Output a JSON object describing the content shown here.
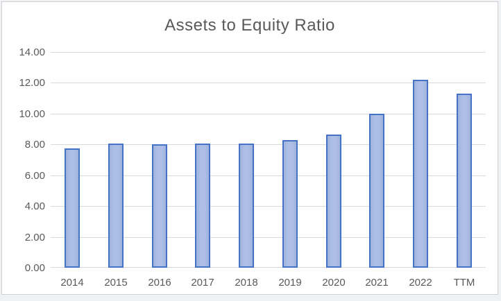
{
  "chart_data": {
    "type": "bar",
    "title": "Assets to Equity Ratio",
    "categories": [
      "2014",
      "2015",
      "2016",
      "2017",
      "2018",
      "2019",
      "2020",
      "2021",
      "2022",
      "TTM"
    ],
    "values": [
      7.75,
      8.05,
      8.0,
      8.05,
      8.05,
      8.3,
      8.65,
      10.0,
      12.2,
      11.3
    ],
    "xlabel": "",
    "ylabel": "",
    "ylim": [
      0,
      14
    ],
    "ytick_step": 2,
    "ytick_labels": [
      "0.00",
      "2.00",
      "4.00",
      "6.00",
      "8.00",
      "10.00",
      "12.00",
      "14.00"
    ],
    "grid": true,
    "legend_position": "none",
    "colors": {
      "bar_fill": "#a7bae2",
      "bar_border": "#4472c4",
      "gridline": "#d9d9d9",
      "axis_text": "#595959",
      "title_text": "#595959",
      "chart_background": "#ffffff",
      "chart_object_border": "#cdd0d4"
    }
  }
}
